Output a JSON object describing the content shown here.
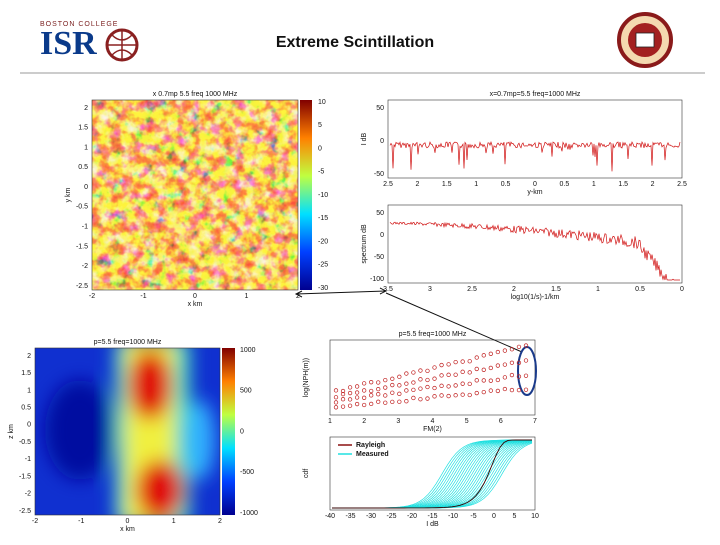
{
  "header": {
    "title": "Extreme Scintillation",
    "logo_top": "BOSTON COLLEGE",
    "logo": "ISR"
  },
  "panels": [
    {
      "title": "x 0.7mp 5.5 freq 1000 MHz",
      "xlabel": "x km",
      "ylabel": "y km",
      "xticks": [
        "-2",
        "-1",
        "0",
        "1",
        "2"
      ],
      "yticks": [
        "2",
        "1.5",
        "1",
        "0.5",
        "0",
        "-0.5",
        "-1",
        "-1.5",
        "-2",
        "-2.5"
      ],
      "colorbar": [
        "10",
        "5",
        "0",
        "-5",
        "-10",
        "-15",
        "-20",
        "-25",
        "-30"
      ]
    },
    {
      "title": "x=0.7mp=5.5 freq=1000 MHz",
      "xlabel": "y-km",
      "ylabel": "I dB",
      "xticks": [
        "2.5",
        "2",
        "1.5",
        "1",
        "0.5",
        "0",
        "0.5",
        "1",
        "1.5",
        "2",
        "2.5"
      ],
      "yticks": [
        "50",
        "0",
        "-50"
      ]
    },
    {
      "xlabel": "log10(1/s)-1/km",
      "ylabel": "spectrum dB",
      "xticks": [
        "3.5",
        "3",
        "2.5",
        "2",
        "1.5",
        "1",
        "0.5",
        "0"
      ],
      "yticks": [
        "50",
        "0",
        "-50",
        "-100"
      ]
    },
    {
      "title": "p=5.5 freq=1000 MHz",
      "xlabel": "x km",
      "ylabel": "z km",
      "xticks": [
        "-2",
        "-1",
        "0",
        "1",
        "2"
      ],
      "yticks": [
        "2",
        "1.5",
        "1",
        "0.5",
        "0",
        "-0.5",
        "-1",
        "-1.5",
        "-2",
        "-2.5"
      ],
      "colorbar": [
        "1000",
        "500",
        "0",
        "-500",
        "-1000"
      ]
    },
    {
      "title": "p=5.5 freq=1000 MHz",
      "xlabel": "FM(2)",
      "ylabel": "log(NPH(m))",
      "xticks": [
        "1",
        "2",
        "3",
        "4",
        "5",
        "6",
        "7"
      ]
    },
    {
      "xlabel": "I dB",
      "ylabel": "cdf",
      "legend": [
        "Rayleigh",
        "Measured"
      ],
      "xticks": [
        "-40",
        "-35",
        "-30",
        "-25",
        "-20",
        "-15",
        "-10",
        "-5",
        "0",
        "5",
        "10"
      ]
    }
  ]
}
